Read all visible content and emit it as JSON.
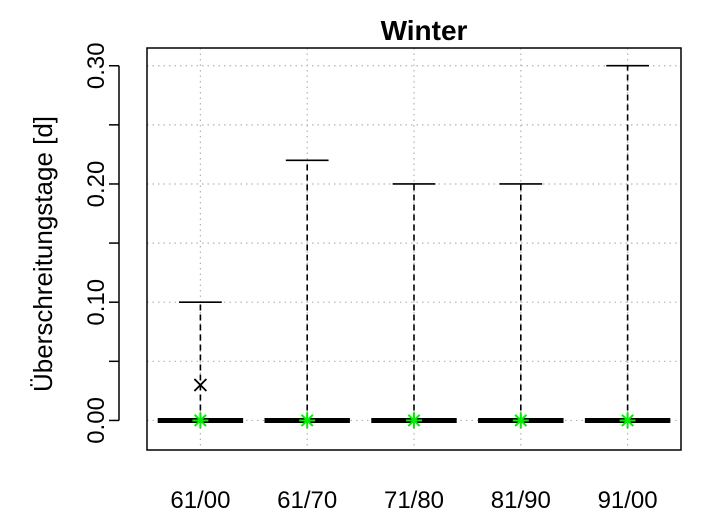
{
  "chart_data": {
    "type": "boxplot",
    "title": "Winter",
    "ylabel": "Überschreitungstage [d]",
    "xlabel": "",
    "ylim": [
      -0.025,
      0.315
    ],
    "yticks": [
      0.0,
      0.1,
      0.2,
      0.3
    ],
    "ytick_labels": [
      "0.00",
      "0.10",
      "0.20",
      "0.30"
    ],
    "minor_yticks": [
      0.05,
      0.15,
      0.25
    ],
    "grid": true,
    "categories": [
      "61/00",
      "61/70",
      "71/80",
      "81/90",
      "91/00"
    ],
    "boxes": [
      {
        "category": "61/00",
        "min": 0,
        "q1": 0,
        "median": 0,
        "q3": 0,
        "whisker_high": 0.1,
        "mean": 0
      },
      {
        "category": "61/70",
        "min": 0,
        "q1": 0,
        "median": 0,
        "q3": 0,
        "whisker_high": 0.22,
        "mean": 0
      },
      {
        "category": "71/80",
        "min": 0,
        "q1": 0,
        "median": 0,
        "q3": 0,
        "whisker_high": 0.2,
        "mean": 0
      },
      {
        "category": "81/90",
        "min": 0,
        "q1": 0,
        "median": 0,
        "q3": 0,
        "whisker_high": 0.2,
        "mean": 0
      },
      {
        "category": "91/00",
        "min": 0,
        "q1": 0,
        "median": 0,
        "q3": 0,
        "whisker_high": 0.3,
        "mean": 0
      }
    ],
    "extra_points": [
      {
        "category": "61/00",
        "value": 0.03,
        "marker": "x",
        "color": "#000000"
      }
    ],
    "mean_marker_color": "#00ee00"
  }
}
